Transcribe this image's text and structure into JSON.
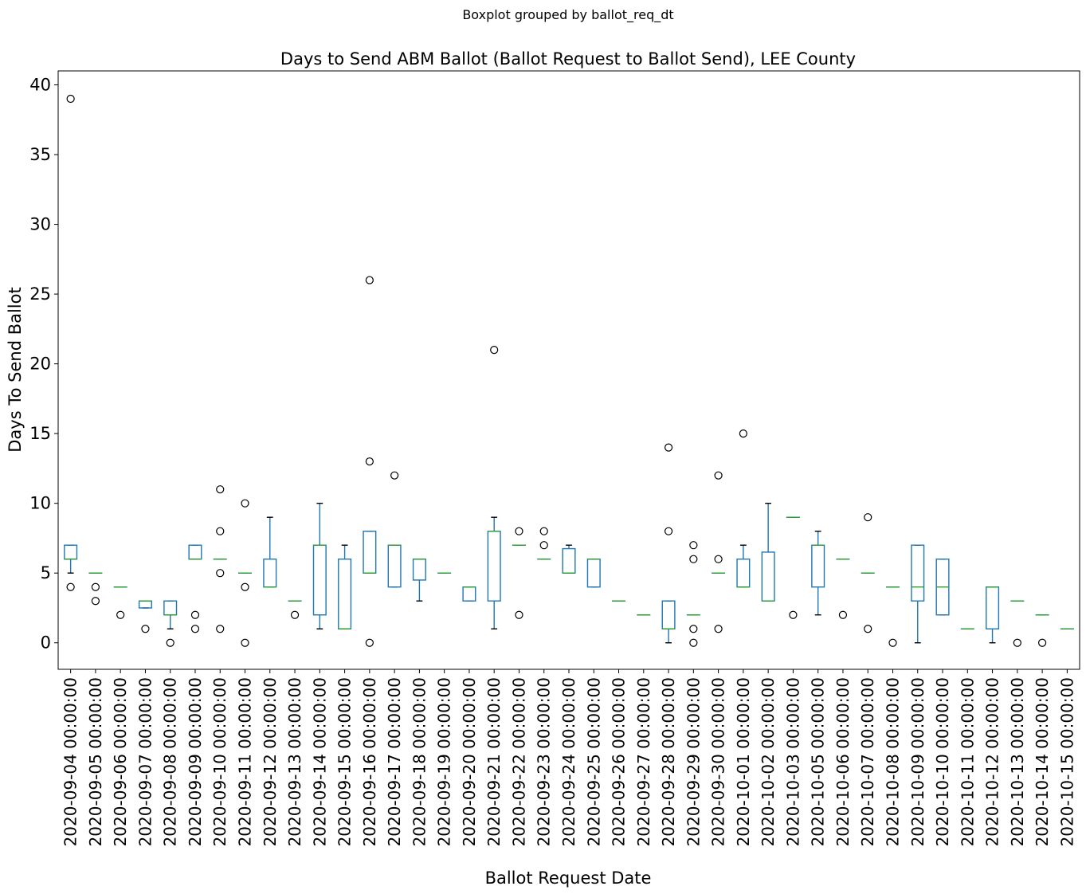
{
  "chart_data": {
    "type": "boxplot",
    "suptitle": "Boxplot grouped by ballot_req_dt",
    "title": "Days to Send ABM Ballot (Ballot Request to Ballot Send), LEE County",
    "xlabel": "Ballot Request Date",
    "ylabel": "Days To Send Ballot",
    "ylim": [
      -1.9,
      41.0
    ],
    "yticks": [
      0,
      5,
      10,
      15,
      20,
      25,
      30,
      35,
      40
    ],
    "grid": false,
    "colors": {
      "box": "#1f77b4",
      "median": "#2ca02c",
      "whisker_cap": "#000000",
      "flier": "#000000"
    },
    "categories": [
      "2020-09-04 00:00:00",
      "2020-09-05 00:00:00",
      "2020-09-06 00:00:00",
      "2020-09-07 00:00:00",
      "2020-09-08 00:00:00",
      "2020-09-09 00:00:00",
      "2020-09-10 00:00:00",
      "2020-09-11 00:00:00",
      "2020-09-12 00:00:00",
      "2020-09-13 00:00:00",
      "2020-09-14 00:00:00",
      "2020-09-15 00:00:00",
      "2020-09-16 00:00:00",
      "2020-09-17 00:00:00",
      "2020-09-18 00:00:00",
      "2020-09-19 00:00:00",
      "2020-09-20 00:00:00",
      "2020-09-21 00:00:00",
      "2020-09-22 00:00:00",
      "2020-09-23 00:00:00",
      "2020-09-24 00:00:00",
      "2020-09-25 00:00:00",
      "2020-09-26 00:00:00",
      "2020-09-27 00:00:00",
      "2020-09-28 00:00:00",
      "2020-09-29 00:00:00",
      "2020-09-30 00:00:00",
      "2020-10-01 00:00:00",
      "2020-10-02 00:00:00",
      "2020-10-03 00:00:00",
      "2020-10-05 00:00:00",
      "2020-10-06 00:00:00",
      "2020-10-07 00:00:00",
      "2020-10-08 00:00:00",
      "2020-10-09 00:00:00",
      "2020-10-10 00:00:00",
      "2020-10-11 00:00:00",
      "2020-10-12 00:00:00",
      "2020-10-13 00:00:00",
      "2020-10-14 00:00:00",
      "2020-10-15 00:00:00"
    ],
    "boxes": [
      {
        "whislo": 5,
        "q1": 6,
        "med": 6,
        "q3": 7,
        "whishi": 7,
        "fliers": [
          4,
          39
        ]
      },
      {
        "whislo": 5,
        "q1": 5,
        "med": 5,
        "q3": 5,
        "whishi": 5,
        "fliers": [
          3,
          4
        ]
      },
      {
        "whislo": 4,
        "q1": 4,
        "med": 4,
        "q3": 4,
        "whishi": 4,
        "fliers": [
          2
        ]
      },
      {
        "whislo": 2.5,
        "q1": 2.5,
        "med": 3,
        "q3": 3,
        "whishi": 3,
        "fliers": [
          1
        ]
      },
      {
        "whislo": 1,
        "q1": 2,
        "med": 2,
        "q3": 3,
        "whishi": 3,
        "fliers": [
          0
        ]
      },
      {
        "whislo": 6,
        "q1": 6,
        "med": 6,
        "q3": 7,
        "whishi": 7,
        "fliers": [
          1,
          2
        ]
      },
      {
        "whislo": 6,
        "q1": 6,
        "med": 6,
        "q3": 6,
        "whishi": 6,
        "fliers": [
          1,
          5,
          8,
          11
        ]
      },
      {
        "whislo": 5,
        "q1": 5,
        "med": 5,
        "q3": 5,
        "whishi": 5,
        "fliers": [
          0,
          4,
          10
        ]
      },
      {
        "whislo": 4,
        "q1": 4,
        "med": 4,
        "q3": 6,
        "whishi": 9,
        "fliers": []
      },
      {
        "whislo": 3,
        "q1": 3,
        "med": 3,
        "q3": 3,
        "whishi": 3,
        "fliers": [
          2
        ]
      },
      {
        "whislo": 1,
        "q1": 2,
        "med": 7,
        "q3": 7,
        "whishi": 10,
        "fliers": []
      },
      {
        "whislo": 1,
        "q1": 1,
        "med": 1,
        "q3": 6,
        "whishi": 7,
        "fliers": []
      },
      {
        "whislo": 5,
        "q1": 5,
        "med": 5,
        "q3": 8,
        "whishi": 8,
        "fliers": [
          0,
          13,
          26
        ]
      },
      {
        "whislo": 4,
        "q1": 4,
        "med": 7,
        "q3": 7,
        "whishi": 7,
        "fliers": [
          12
        ]
      },
      {
        "whislo": 3,
        "q1": 4.5,
        "med": 6,
        "q3": 6,
        "whishi": 6,
        "fliers": []
      },
      {
        "whislo": 5,
        "q1": 5,
        "med": 5,
        "q3": 5,
        "whishi": 5,
        "fliers": []
      },
      {
        "whislo": 3,
        "q1": 3,
        "med": 4,
        "q3": 4,
        "whishi": 4,
        "fliers": []
      },
      {
        "whislo": 1,
        "q1": 3,
        "med": 8,
        "q3": 8,
        "whishi": 9,
        "fliers": [
          21
        ]
      },
      {
        "whislo": 7,
        "q1": 7,
        "med": 7,
        "q3": 7,
        "whishi": 7,
        "fliers": [
          2,
          8
        ]
      },
      {
        "whislo": 6,
        "q1": 6,
        "med": 6,
        "q3": 6,
        "whishi": 6,
        "fliers": [
          7,
          8
        ]
      },
      {
        "whislo": 5,
        "q1": 5,
        "med": 5,
        "q3": 6.75,
        "whishi": 7,
        "fliers": []
      },
      {
        "whislo": 4,
        "q1": 4,
        "med": 6,
        "q3": 6,
        "whishi": 6,
        "fliers": []
      },
      {
        "whislo": 3,
        "q1": 3,
        "med": 3,
        "q3": 3,
        "whishi": 3,
        "fliers": []
      },
      {
        "whislo": 2,
        "q1": 2,
        "med": 2,
        "q3": 2,
        "whishi": 2,
        "fliers": []
      },
      {
        "whislo": 0,
        "q1": 1,
        "med": 1,
        "q3": 3,
        "whishi": 3,
        "fliers": [
          8,
          14
        ]
      },
      {
        "whislo": 2,
        "q1": 2,
        "med": 2,
        "q3": 2,
        "whishi": 2,
        "fliers": [
          0,
          1,
          6,
          7
        ]
      },
      {
        "whislo": 5,
        "q1": 5,
        "med": 5,
        "q3": 5,
        "whishi": 5,
        "fliers": [
          1,
          6,
          12
        ]
      },
      {
        "whislo": 4,
        "q1": 4,
        "med": 4,
        "q3": 6,
        "whishi": 7,
        "fliers": [
          15
        ]
      },
      {
        "whislo": 3,
        "q1": 3,
        "med": 3,
        "q3": 6.5,
        "whishi": 10,
        "fliers": []
      },
      {
        "whislo": 9,
        "q1": 9,
        "med": 9,
        "q3": 9,
        "whishi": 9,
        "fliers": [
          2
        ]
      },
      {
        "whislo": 2,
        "q1": 4,
        "med": 7,
        "q3": 7,
        "whishi": 8,
        "fliers": []
      },
      {
        "whislo": 6,
        "q1": 6,
        "med": 6,
        "q3": 6,
        "whishi": 6,
        "fliers": [
          2
        ]
      },
      {
        "whislo": 5,
        "q1": 5,
        "med": 5,
        "q3": 5,
        "whishi": 5,
        "fliers": [
          1,
          9
        ]
      },
      {
        "whislo": 4,
        "q1": 4,
        "med": 4,
        "q3": 4,
        "whishi": 4,
        "fliers": [
          0
        ]
      },
      {
        "whislo": 0,
        "q1": 3,
        "med": 4,
        "q3": 7,
        "whishi": 7,
        "fliers": []
      },
      {
        "whislo": 2,
        "q1": 2,
        "med": 4,
        "q3": 6,
        "whishi": 6,
        "fliers": []
      },
      {
        "whislo": 1,
        "q1": 1,
        "med": 1,
        "q3": 1,
        "whishi": 1,
        "fliers": []
      },
      {
        "whislo": 0,
        "q1": 1,
        "med": 4,
        "q3": 4,
        "whishi": 4,
        "fliers": []
      },
      {
        "whislo": 3,
        "q1": 3,
        "med": 3,
        "q3": 3,
        "whishi": 3,
        "fliers": [
          0
        ]
      },
      {
        "whislo": 2,
        "q1": 2,
        "med": 2,
        "q3": 2,
        "whishi": 2,
        "fliers": [
          0
        ]
      },
      {
        "whislo": 1,
        "q1": 1,
        "med": 1,
        "q3": 1,
        "whishi": 1,
        "fliers": []
      }
    ]
  }
}
